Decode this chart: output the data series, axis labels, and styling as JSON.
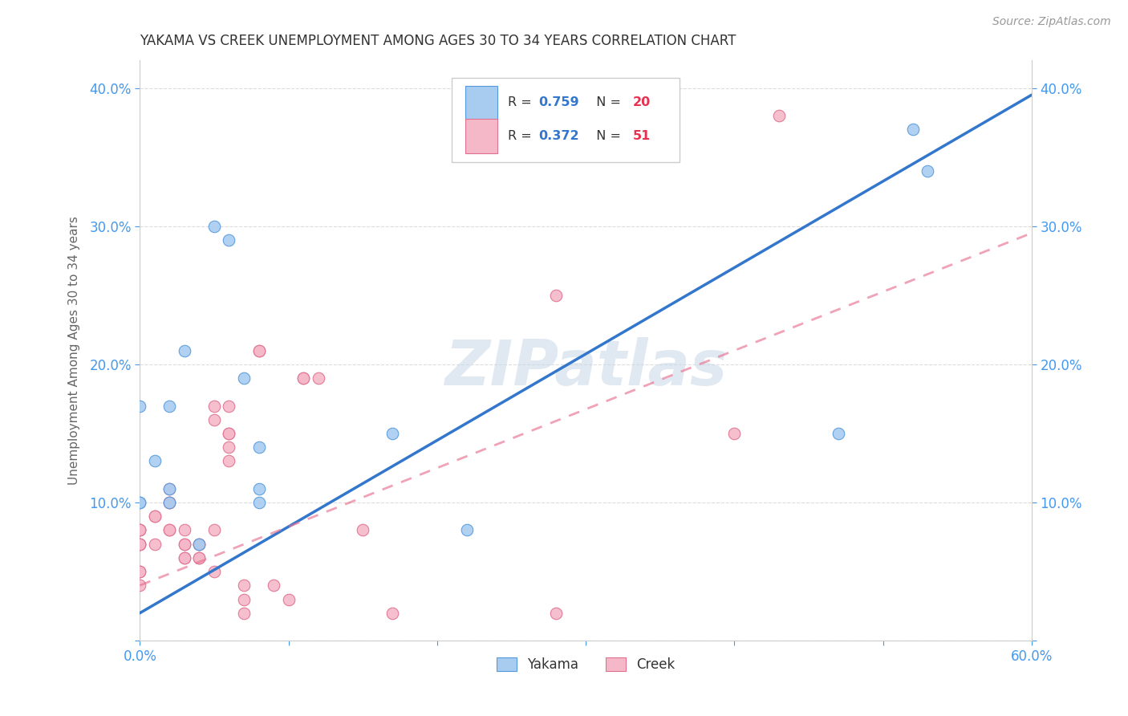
{
  "title": "YAKAMA VS CREEK UNEMPLOYMENT AMONG AGES 30 TO 34 YEARS CORRELATION CHART",
  "source": "Source: ZipAtlas.com",
  "ylabel": "Unemployment Among Ages 30 to 34 years",
  "xlim": [
    0.0,
    0.6
  ],
  "ylim": [
    0.0,
    0.42
  ],
  "xticks": [
    0.0,
    0.1,
    0.2,
    0.3,
    0.4,
    0.5,
    0.6
  ],
  "yticks": [
    0.0,
    0.1,
    0.2,
    0.3,
    0.4
  ],
  "ytick_labels": [
    "",
    "10.0%",
    "20.0%",
    "30.0%",
    "40.0%"
  ],
  "xtick_labels": [
    "0.0%",
    "",
    "",
    "",
    "",
    "",
    "60.0%"
  ],
  "yakama_color": "#a8ccf0",
  "creek_color": "#f5b8c8",
  "yakama_edge_color": "#5599dd",
  "creek_edge_color": "#e07090",
  "yakama_line_color": "#3377cc",
  "creek_line_color": "#e87090",
  "watermark_color": "#c8d8e8",
  "background_color": "#ffffff",
  "grid_color": "#dddddd",
  "title_color": "#333333",
  "axis_label_color": "#666666",
  "legend_text_color": "#333333",
  "legend_R_color": "#3377cc",
  "legend_N_color": "#e83050",
  "source_color": "#999999",
  "tick_color": "#4499ee",
  "yakama_x": [
    0.0,
    0.0,
    0.0,
    0.01,
    0.02,
    0.02,
    0.02,
    0.03,
    0.04,
    0.05,
    0.06,
    0.07,
    0.08,
    0.08,
    0.08,
    0.17,
    0.22,
    0.47,
    0.52,
    0.53
  ],
  "yakama_y": [
    0.1,
    0.1,
    0.17,
    0.13,
    0.1,
    0.11,
    0.17,
    0.21,
    0.07,
    0.3,
    0.29,
    0.19,
    0.1,
    0.14,
    0.11,
    0.15,
    0.08,
    0.15,
    0.37,
    0.34
  ],
  "creek_x": [
    0.0,
    0.0,
    0.0,
    0.0,
    0.0,
    0.0,
    0.0,
    0.0,
    0.0,
    0.01,
    0.01,
    0.01,
    0.02,
    0.02,
    0.02,
    0.02,
    0.02,
    0.03,
    0.03,
    0.03,
    0.03,
    0.03,
    0.04,
    0.04,
    0.04,
    0.04,
    0.05,
    0.05,
    0.05,
    0.05,
    0.06,
    0.06,
    0.06,
    0.06,
    0.06,
    0.07,
    0.07,
    0.07,
    0.08,
    0.08,
    0.09,
    0.1,
    0.11,
    0.11,
    0.12,
    0.15,
    0.17,
    0.28,
    0.28,
    0.4,
    0.43
  ],
  "creek_y": [
    0.07,
    0.07,
    0.07,
    0.08,
    0.08,
    0.08,
    0.05,
    0.05,
    0.04,
    0.07,
    0.09,
    0.09,
    0.08,
    0.08,
    0.1,
    0.1,
    0.11,
    0.06,
    0.06,
    0.07,
    0.07,
    0.08,
    0.06,
    0.06,
    0.07,
    0.07,
    0.05,
    0.08,
    0.16,
    0.17,
    0.13,
    0.14,
    0.15,
    0.15,
    0.17,
    0.02,
    0.03,
    0.04,
    0.21,
    0.21,
    0.04,
    0.03,
    0.19,
    0.19,
    0.19,
    0.08,
    0.02,
    0.02,
    0.25,
    0.15,
    0.38
  ],
  "yakama_line_x0": 0.0,
  "yakama_line_y0": 0.02,
  "yakama_line_x1": 0.6,
  "yakama_line_y1": 0.395,
  "creek_line_x0": 0.0,
  "creek_line_y0": 0.04,
  "creek_line_x1": 0.6,
  "creek_line_y1": 0.295
}
